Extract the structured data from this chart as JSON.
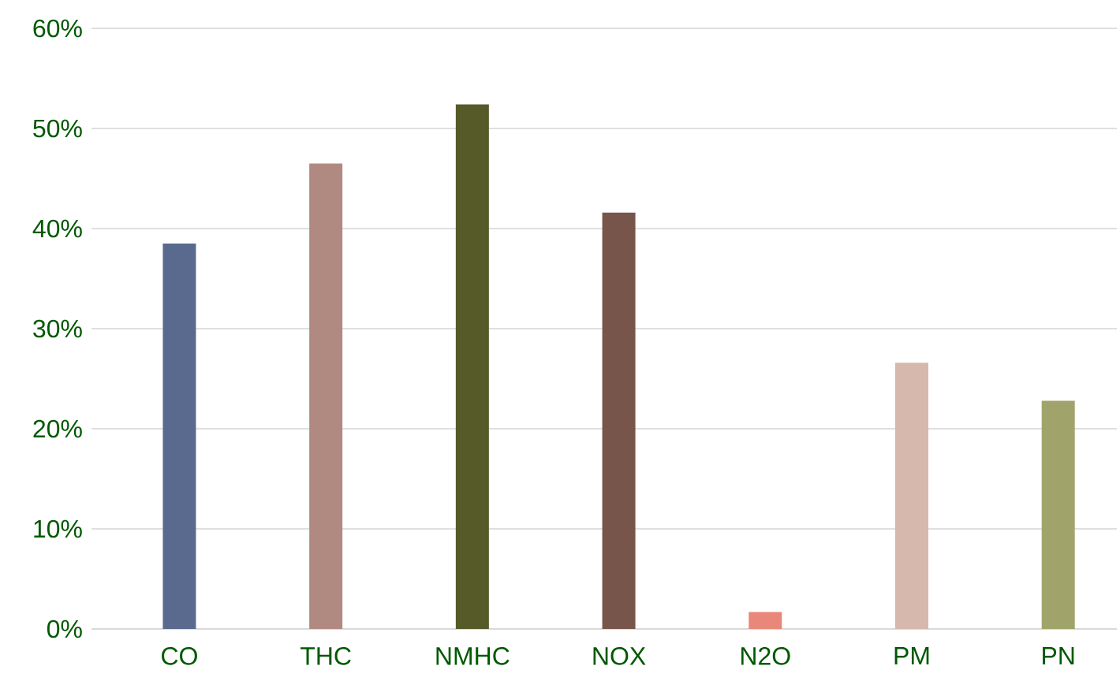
{
  "chart_data": {
    "type": "bar",
    "categories": [
      "CO",
      "THC",
      "NMHC",
      "NOX",
      "N2O",
      "PM",
      "PN"
    ],
    "values": [
      38.5,
      46.5,
      52.4,
      41.6,
      1.7,
      26.6,
      22.8
    ],
    "colors": [
      "#5a6a8e",
      "#b08a80",
      "#555a28",
      "#78554a",
      "#e8877a",
      "#d6b8ac",
      "#a0a46a"
    ],
    "ylim": [
      0,
      60
    ],
    "yticks": [
      {
        "value": 0,
        "label": "0%"
      },
      {
        "value": 10,
        "label": "10%"
      },
      {
        "value": 20,
        "label": "20%"
      },
      {
        "value": 30,
        "label": "30%"
      },
      {
        "value": 40,
        "label": "40%"
      },
      {
        "value": 50,
        "label": "50%"
      },
      {
        "value": 60,
        "label": "60%"
      }
    ],
    "grid": "y"
  }
}
